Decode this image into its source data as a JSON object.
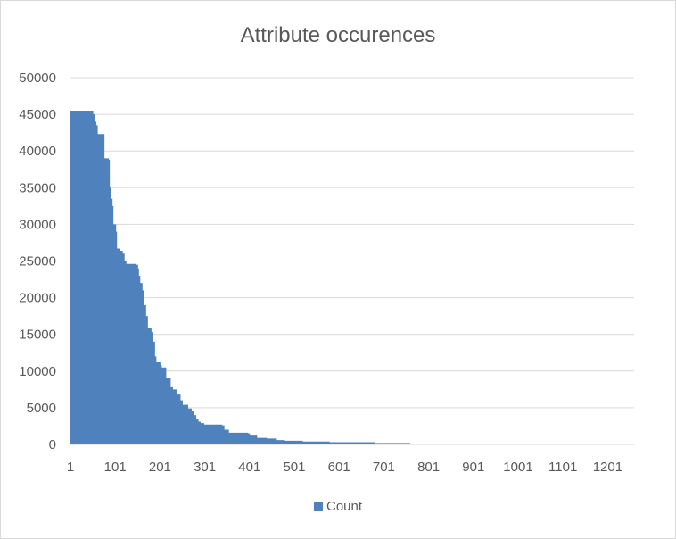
{
  "chart_data": {
    "type": "area",
    "title": "Attribute occurences",
    "xlabel": "",
    "ylabel": "",
    "ylim": [
      0,
      50000
    ],
    "xlim": [
      1,
      1260
    ],
    "yticks": [
      "0",
      "5000",
      "10000",
      "15000",
      "20000",
      "25000",
      "30000",
      "35000",
      "40000",
      "45000",
      "50000"
    ],
    "xticks": [
      "1",
      "101",
      "201",
      "301",
      "401",
      "501",
      "601",
      "701",
      "801",
      "901",
      "1001",
      "1101",
      "1201"
    ],
    "grid": true,
    "legend_position": "bottom",
    "series": [
      {
        "name": "Count",
        "color": "#4f81bd",
        "points": [
          [
            1,
            45500
          ],
          [
            50,
            45500
          ],
          [
            52,
            45000
          ],
          [
            55,
            44000
          ],
          [
            59,
            43500
          ],
          [
            62,
            42300
          ],
          [
            75,
            42300
          ],
          [
            77,
            39000
          ],
          [
            87,
            38800
          ],
          [
            89,
            35000
          ],
          [
            91,
            33500
          ],
          [
            95,
            32500
          ],
          [
            97,
            30000
          ],
          [
            103,
            29000
          ],
          [
            105,
            26700
          ],
          [
            112,
            26400
          ],
          [
            118,
            26000
          ],
          [
            122,
            25000
          ],
          [
            126,
            24600
          ],
          [
            148,
            24500
          ],
          [
            152,
            24000
          ],
          [
            154,
            23000
          ],
          [
            157,
            22000
          ],
          [
            162,
            21000
          ],
          [
            166,
            19000
          ],
          [
            170,
            17500
          ],
          [
            174,
            15900
          ],
          [
            182,
            15300
          ],
          [
            186,
            14000
          ],
          [
            190,
            12000
          ],
          [
            193,
            11200
          ],
          [
            202,
            10800
          ],
          [
            205,
            10500
          ],
          [
            215,
            9000
          ],
          [
            225,
            7800
          ],
          [
            230,
            7500
          ],
          [
            238,
            6800
          ],
          [
            247,
            6000
          ],
          [
            252,
            5400
          ],
          [
            264,
            4900
          ],
          [
            272,
            4500
          ],
          [
            277,
            4000
          ],
          [
            282,
            3500
          ],
          [
            287,
            3100
          ],
          [
            292,
            2900
          ],
          [
            300,
            2700
          ],
          [
            340,
            2600
          ],
          [
            345,
            2000
          ],
          [
            355,
            1600
          ],
          [
            398,
            1500
          ],
          [
            402,
            1200
          ],
          [
            418,
            900
          ],
          [
            440,
            800
          ],
          [
            462,
            600
          ],
          [
            480,
            500
          ],
          [
            520,
            400
          ],
          [
            580,
            300
          ],
          [
            680,
            200
          ],
          [
            760,
            120
          ],
          [
            860,
            80
          ],
          [
            1000,
            50
          ],
          [
            1150,
            30
          ],
          [
            1260,
            20
          ]
        ]
      }
    ]
  }
}
